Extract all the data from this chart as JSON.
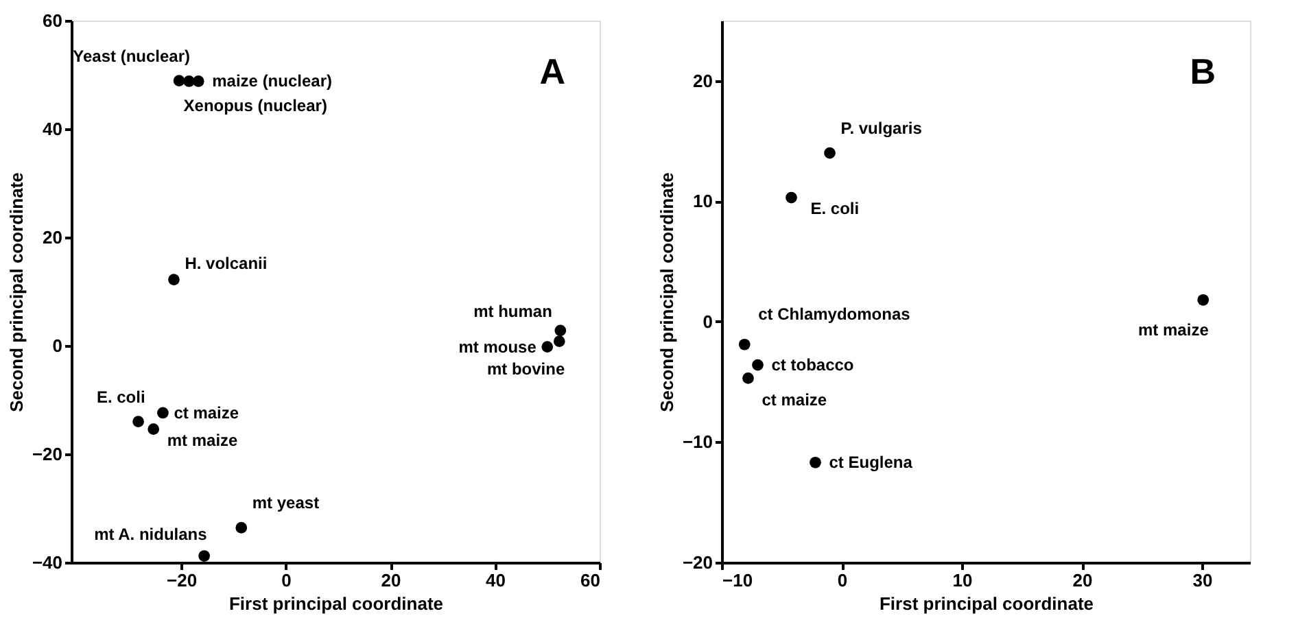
{
  "chart_data": [
    {
      "type": "scatter",
      "xlabel": "First principal coordinate",
      "ylabel": "Second principal coordinate",
      "xlim": [
        -41,
        60
      ],
      "ylim": [
        -40,
        60
      ],
      "xticks": [
        -20,
        0,
        20,
        40,
        60
      ],
      "yticks": [
        -40,
        -20,
        0,
        20,
        40,
        60
      ],
      "grid": false,
      "marker": "circle",
      "series": [
        {
          "color": "#000000",
          "x": [
            -20.4,
            -16.7,
            -18.5,
            -21.4,
            52.5,
            50.0,
            52.3,
            -28.2,
            -23.5,
            -25.3,
            -8.5,
            -15.6
          ],
          "values": [
            48.9,
            48.8,
            48.8,
            12.2,
            2.8,
            -0.2,
            0.8,
            -14.0,
            -12.4,
            -15.4,
            -33.6,
            -38.8
          ]
        }
      ],
      "annotations": [
        "A",
        {
          "text": "Yeast (nuclear)",
          "x": -20.4,
          "y": 48.9
        },
        {
          "text": "maize (nuclear)",
          "x": -16.7,
          "y": 48.8
        },
        {
          "text": "Xenopus (nuclear)",
          "x": -18.5,
          "y": 48.8
        },
        {
          "text": "H. volcanii",
          "x": -21.4,
          "y": 12.2
        },
        {
          "text": "mt human",
          "x": 52.5,
          "y": 2.8
        },
        {
          "text": "mt mouse",
          "x": 50.0,
          "y": -0.2
        },
        {
          "text": "mt bovine",
          "x": 52.3,
          "y": 0.8
        },
        {
          "text": "E. coli",
          "x": -28.2,
          "y": -14.0
        },
        {
          "text": "ct maize",
          "x": -23.5,
          "y": -12.4
        },
        {
          "text": "mt maize",
          "x": -25.3,
          "y": -15.4
        },
        {
          "text": "mt yeast",
          "x": -8.5,
          "y": -33.6
        },
        {
          "text": "mt A. nidulans",
          "x": -15.6,
          "y": -38.8
        }
      ]
    },
    {
      "type": "scatter",
      "xlabel": "First principal coordinate",
      "ylabel": "Second principal coordinate",
      "xlim": [
        -10,
        34
      ],
      "ylim": [
        -20,
        25
      ],
      "xticks": [
        -10,
        0,
        10,
        20,
        30
      ],
      "yticks": [
        -20,
        -10,
        0,
        10,
        20
      ],
      "grid": false,
      "marker": "circle",
      "series": [
        {
          "color": "#000000",
          "x": [
            -1.0,
            -4.2,
            -8.1,
            -7.0,
            -7.8,
            -2.2,
            30.1
          ],
          "values": [
            14.0,
            10.3,
            -1.9,
            -3.6,
            -4.7,
            -11.7,
            1.8
          ]
        }
      ],
      "annotations": [
        "B",
        {
          "text": "P. vulgaris",
          "x": -1.0,
          "y": 14.0
        },
        {
          "text": "E. coli",
          "x": -4.2,
          "y": 10.3
        },
        {
          "text": "ct Chlamydomonas",
          "x": -8.1,
          "y": -1.9
        },
        {
          "text": "ct tobacco",
          "x": -7.0,
          "y": -3.6
        },
        {
          "text": "ct maize",
          "x": -7.8,
          "y": -4.7
        },
        {
          "text": "ct Euglena",
          "x": -2.2,
          "y": -11.7
        },
        {
          "text": "mt maize",
          "x": 30.1,
          "y": 1.8
        }
      ]
    }
  ]
}
